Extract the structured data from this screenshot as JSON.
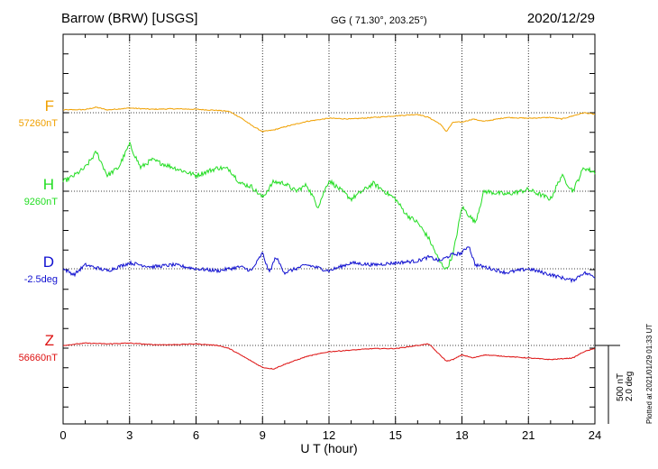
{
  "header": {
    "station": "Barrow (BRW)  [USGS]",
    "coords": "GG ( 71.30°, 203.25°)",
    "date": "2020/12/29"
  },
  "components": [
    {
      "letter": "F",
      "baseline": "57260nT",
      "color": "#f0a000"
    },
    {
      "letter": "H",
      "baseline": "9260nT",
      "color": "#22dd22"
    },
    {
      "letter": "D",
      "baseline": "-2.5deg",
      "color": "#1010d0"
    },
    {
      "letter": "Z",
      "baseline": "56660nT",
      "color": "#dd1010"
    }
  ],
  "scale": {
    "nt": "500 nT",
    "deg": "2.0 deg"
  },
  "plotted_note": "Plotted at 2021/01/29 01:33 UT",
  "chart_data": {
    "type": "line",
    "xlabel": "U T (hour)",
    "xlim": [
      0,
      24
    ],
    "xticks": [
      "0",
      "3",
      "6",
      "9",
      "12",
      "15",
      "18",
      "21",
      "24"
    ],
    "grid": "dotted vertical at every 3 h, dotted baseline per trace",
    "y_units": "offset from baseline (nT; deg for D)",
    "series": [
      {
        "name": "F",
        "color": "#f0a000",
        "x": [
          0,
          1,
          1.5,
          2,
          3,
          4,
          5,
          6,
          6.5,
          7,
          7.5,
          8,
          8.5,
          9,
          9.5,
          10,
          11,
          12,
          13,
          14,
          15,
          16,
          16.5,
          17,
          17.3,
          17.6,
          18,
          18.5,
          19,
          20,
          21,
          22,
          22.5,
          23,
          23.5,
          24
        ],
        "y": [
          18,
          20,
          35,
          18,
          30,
          22,
          25,
          22,
          18,
          15,
          8,
          -30,
          -80,
          -120,
          -110,
          -90,
          -55,
          -35,
          -40,
          -30,
          -20,
          -10,
          -30,
          -70,
          -120,
          -60,
          -60,
          -40,
          -55,
          -30,
          -35,
          -30,
          -40,
          -20,
          0,
          -10
        ]
      },
      {
        "name": "H",
        "color": "#22dd22",
        "x": [
          0,
          0.5,
          1,
          1.5,
          2,
          2.5,
          3,
          3.5,
          4,
          5,
          6,
          7,
          7.5,
          8,
          8.5,
          9,
          9.5,
          10,
          10.5,
          11,
          11.5,
          12,
          13,
          14,
          15,
          15.5,
          16,
          16.5,
          17,
          17.3,
          17.6,
          18,
          18.3,
          18.6,
          19,
          20,
          21,
          22,
          22.5,
          23,
          23.5,
          24
        ],
        "y": [
          60,
          100,
          150,
          250,
          100,
          150,
          300,
          150,
          200,
          150,
          100,
          150,
          140,
          50,
          30,
          -40,
          60,
          50,
          0,
          40,
          -100,
          70,
          -50,
          50,
          -50,
          -150,
          -200,
          -300,
          -450,
          -500,
          -400,
          -100,
          -150,
          -200,
          0,
          -20,
          10,
          -50,
          100,
          0,
          150,
          120
        ]
      },
      {
        "name": "D",
        "color": "#1010d0",
        "x": [
          0,
          0.5,
          1,
          2,
          3,
          4,
          5,
          6,
          7,
          8,
          8.5,
          9,
          9.3,
          9.6,
          10,
          10.5,
          11,
          12,
          13,
          14,
          15,
          16,
          16.5,
          17,
          17.5,
          18,
          18.3,
          18.6,
          19,
          20,
          21,
          22,
          23,
          23.5,
          24
        ],
        "y": [
          0,
          -0.15,
          0.1,
          -0.05,
          0.15,
          0.05,
          0.1,
          0.0,
          -0.05,
          0.05,
          -0.05,
          0.4,
          -0.1,
          0.3,
          -0.1,
          0.0,
          0.1,
          -0.05,
          0.15,
          0.1,
          0.15,
          0.2,
          0.3,
          0.2,
          0.35,
          0.4,
          0.6,
          0.1,
          0.05,
          -0.1,
          0.0,
          -0.15,
          -0.3,
          -0.1,
          -0.2
        ]
      },
      {
        "name": "Z",
        "color": "#dd1010",
        "x": [
          0,
          1,
          2,
          3,
          4,
          5,
          6,
          7,
          7.5,
          8,
          8.5,
          9,
          9.5,
          10,
          11,
          12,
          13,
          14,
          15,
          16,
          16.5,
          17,
          17.3,
          17.6,
          18,
          18.5,
          19,
          20,
          21,
          22,
          23,
          23.5,
          24
        ],
        "y": [
          0,
          15,
          10,
          15,
          5,
          5,
          10,
          0,
          -20,
          -60,
          -100,
          -140,
          -150,
          -120,
          -70,
          -40,
          -30,
          -20,
          -20,
          0,
          10,
          -60,
          -100,
          -90,
          -60,
          -80,
          -60,
          -70,
          -80,
          -90,
          -80,
          -40,
          -20
        ]
      }
    ]
  }
}
